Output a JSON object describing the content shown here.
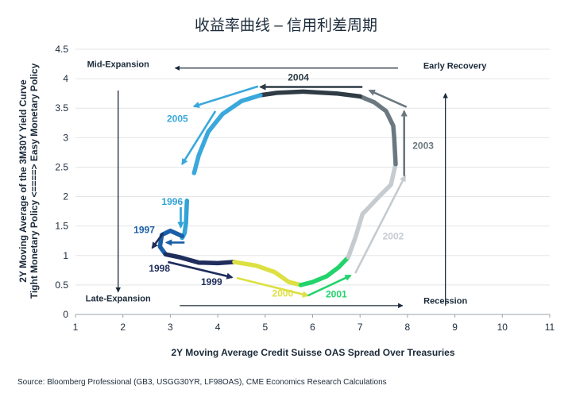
{
  "chart_data": {
    "type": "line",
    "title": "收益率曲线 – 信用利差周期",
    "xlabel": "2Y Moving Average Credit Suisse OAS Spread Over Treasuries",
    "ylabel_line1": "2Y Moving Average of the 3M30Y Yield Curve",
    "ylabel_line2": "Tight Monetary Policy <====> Easy Monetary Policy",
    "source": "Source: Bloomberg Professional (GB3, USGG30YR, LF98OAS), CME Economics Research Calculations",
    "xlim": [
      1,
      11
    ],
    "ylim": [
      0,
      4.5
    ],
    "x_ticks": [
      "1",
      "2",
      "3",
      "4",
      "5",
      "6",
      "7",
      "8",
      "9",
      "10",
      "11"
    ],
    "y_ticks": [
      "0",
      "0.5",
      "1",
      "1.5",
      "2",
      "2.5",
      "3",
      "3.5",
      "4",
      "4.5"
    ],
    "grid": "horizontal",
    "phases": [
      {
        "label": "Mid-Expansion",
        "x": 1.9,
        "y": 4.2
      },
      {
        "label": "Early Recovery",
        "x": 9.0,
        "y": 4.17
      },
      {
        "label": "Late-Expansion",
        "x": 1.9,
        "y": 0.22
      },
      {
        "label": "Recession",
        "x": 8.8,
        "y": 0.18
      }
    ],
    "phase_arrows": [
      {
        "from": [
          7.8,
          4.18
        ],
        "to": [
          3.1,
          4.18
        ]
      },
      {
        "from": [
          1.9,
          3.8
        ],
        "to": [
          1.9,
          0.38
        ]
      },
      {
        "from": [
          3.2,
          0.15
        ],
        "to": [
          7.9,
          0.15
        ]
      },
      {
        "from": [
          8.8,
          0.15
        ],
        "to": [
          8.8,
          3.75
        ]
      }
    ],
    "series": [
      {
        "name": "1996",
        "color": "#31a3d6",
        "points": [
          [
            3.35,
            1.93
          ],
          [
            3.34,
            1.75
          ],
          [
            3.33,
            1.55
          ],
          [
            3.3,
            1.38
          ],
          [
            3.25,
            1.3
          ]
        ]
      },
      {
        "name": "1997",
        "color": "#1a5fa8",
        "points": [
          [
            3.25,
            1.33
          ],
          [
            3.0,
            1.42
          ],
          [
            2.82,
            1.35
          ],
          [
            2.78,
            1.15
          ],
          [
            2.9,
            1.02
          ]
        ]
      },
      {
        "name": "1998",
        "color": "#1f2d5c",
        "points": [
          [
            2.9,
            1.02
          ],
          [
            3.2,
            0.97
          ],
          [
            3.6,
            0.88
          ],
          [
            4.0,
            0.87
          ],
          [
            4.35,
            0.89
          ]
        ]
      },
      {
        "name": "2000",
        "color": "#dde043",
        "points": [
          [
            4.35,
            0.89
          ],
          [
            4.8,
            0.83
          ],
          [
            5.2,
            0.72
          ],
          [
            5.5,
            0.55
          ],
          [
            5.75,
            0.5
          ]
        ]
      },
      {
        "name": "2001",
        "color": "#21d36b",
        "points": [
          [
            5.75,
            0.5
          ],
          [
            6.0,
            0.55
          ],
          [
            6.3,
            0.65
          ],
          [
            6.55,
            0.8
          ],
          [
            6.75,
            0.97
          ]
        ]
      },
      {
        "name": "2002",
        "color": "#c5cbcf",
        "points": [
          [
            6.75,
            0.97
          ],
          [
            6.9,
            1.3
          ],
          [
            7.05,
            1.7
          ],
          [
            7.4,
            2.0
          ],
          [
            7.65,
            2.2
          ],
          [
            7.75,
            2.55
          ]
        ]
      },
      {
        "name": "2003",
        "color": "#6b7880",
        "points": [
          [
            7.75,
            2.55
          ],
          [
            7.72,
            3.0
          ],
          [
            7.7,
            3.2
          ],
          [
            7.55,
            3.45
          ],
          [
            7.3,
            3.6
          ],
          [
            7.0,
            3.7
          ]
        ]
      },
      {
        "name": "2004",
        "color": "#2f3c45",
        "points": [
          [
            7.0,
            3.7
          ],
          [
            6.5,
            3.75
          ],
          [
            5.8,
            3.78
          ],
          [
            5.25,
            3.76
          ],
          [
            4.9,
            3.72
          ]
        ]
      },
      {
        "name": "2005",
        "color": "#3aa8dc",
        "points": [
          [
            4.9,
            3.72
          ],
          [
            4.5,
            3.62
          ],
          [
            4.1,
            3.4
          ],
          [
            3.8,
            3.1
          ],
          [
            3.6,
            2.7
          ],
          [
            3.5,
            2.4
          ]
        ]
      }
    ],
    "year_arrows": [
      {
        "label": "1996",
        "color": "#31a3d6",
        "from": [
          3.22,
          1.82
        ],
        "to": [
          3.22,
          1.48
        ],
        "label_pos": [
          3.04,
          1.86
        ]
      },
      {
        "label": "1997",
        "color": "#1a5fa8",
        "from": [
          3.3,
          1.22
        ],
        "to": [
          2.92,
          1.22
        ],
        "label_pos": [
          2.45,
          1.38
        ]
      },
      {
        "label": "1997b",
        "color": "#1f2d5c",
        "from": [
          2.85,
          1.38
        ],
        "to": [
          2.62,
          1.13
        ],
        "label_pos": null
      },
      {
        "label": "1998",
        "color": "#1f2d5c",
        "from": [
          2.95,
          0.89
        ],
        "to": [
          4.3,
          0.63
        ],
        "label_pos": [
          2.77,
          0.73
        ]
      },
      {
        "label": "1999",
        "color": "#1f2d5c",
        "from": null,
        "to": null,
        "label_pos": [
          3.87,
          0.5
        ]
      },
      {
        "label": "2000",
        "color": "#dde043",
        "from": [
          4.4,
          0.62
        ],
        "to": [
          5.9,
          0.32
        ],
        "label_pos": [
          5.37,
          0.3
        ]
      },
      {
        "label": "2001",
        "color": "#21d36b",
        "from": [
          5.9,
          0.32
        ],
        "to": [
          6.8,
          0.66
        ],
        "label_pos": [
          6.5,
          0.29
        ]
      },
      {
        "label": "2002",
        "color": "#c5cbcf",
        "from": [
          6.9,
          0.7
        ],
        "to": [
          7.95,
          2.35
        ],
        "label_pos": [
          7.7,
          1.27
        ]
      },
      {
        "label": "2003",
        "color": "#6b7880",
        "from": [
          7.93,
          2.35
        ],
        "to": [
          7.93,
          3.45
        ],
        "label_pos": [
          8.33,
          2.81
        ]
      },
      {
        "label": "2003b",
        "color": "#6b7880",
        "from": [
          7.98,
          3.52
        ],
        "to": [
          7.2,
          3.8
        ],
        "label_pos": null
      },
      {
        "label": "2004",
        "color": "#2f3c45",
        "from": [
          7.05,
          3.86
        ],
        "to": [
          4.9,
          3.86
        ],
        "label_pos": [
          5.7,
          3.97
        ]
      },
      {
        "label": "2005",
        "color": "#3aa8dc",
        "from": [
          4.85,
          3.87
        ],
        "to": [
          3.5,
          3.53
        ],
        "label_pos": [
          3.15,
          3.27
        ]
      },
      {
        "label": "2005b",
        "color": "#3aa8dc",
        "from": [
          3.95,
          3.45
        ],
        "to": [
          3.25,
          2.55
        ],
        "label_pos": null
      }
    ]
  }
}
